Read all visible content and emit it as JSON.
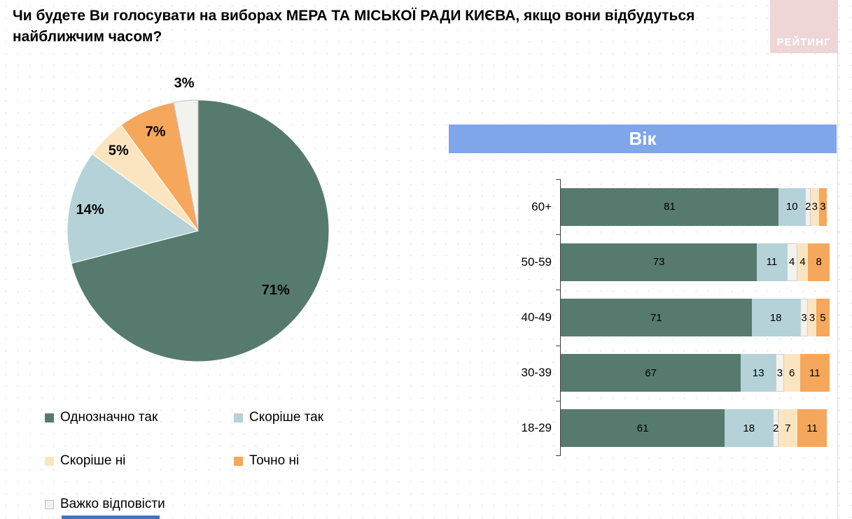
{
  "title": "Чи будете Ви голосувати на виборах МЕРА ТА МІСЬКОЇ РАДИ КИЄВА, якщо вони відбудуться найближчим часом?",
  "logo": {
    "text": "РЕЙТИНГ"
  },
  "colors": {
    "band_blue": "#7EA6E9",
    "logo_pink": "#EFD6D6",
    "accent_strip_blue": "#4472C4",
    "answer_definitely_yes": "#567B6E",
    "answer_rather_yes": "#B4D2D8",
    "answer_rather_no": "#FBE5C0",
    "answer_definitely_no": "#F5A75C",
    "answer_hard_to_say": "#F2F2EF"
  },
  "legend": [
    {
      "label": "Однозначно так",
      "color": "#567B6E"
    },
    {
      "label": "Скоріше так",
      "color": "#B4D2D8"
    },
    {
      "label": "Скоріше ні",
      "color": "#FBE5C0"
    },
    {
      "label": "Точно ні",
      "color": "#F5A75C"
    },
    {
      "label": "Важко відповісти",
      "color": "#F2F2EF"
    }
  ],
  "chart_data": [
    {
      "type": "pie",
      "labels": [
        "Однозначно так",
        "Скоріше так",
        "Скоріше ні",
        "Точно ні",
        "Важко відповісти"
      ],
      "values": [
        71,
        14,
        5,
        7,
        3
      ],
      "percent_labels": [
        "71%",
        "14%",
        "5%",
        "7%",
        "3%"
      ],
      "colors": [
        "#567B6E",
        "#B4D2D8",
        "#FBE5C0",
        "#F5A75C",
        "#F2F2EF"
      ],
      "start_angle_deg": -90,
      "direction": "clockwise"
    },
    {
      "type": "bar",
      "orientation": "horizontal-stacked",
      "title": "Вік",
      "categories": [
        "60+",
        "50-59",
        "40-49",
        "30-39",
        "18-29"
      ],
      "series": [
        {
          "name": "Однозначно так",
          "color": "#567B6E",
          "values": [
            81,
            73,
            71,
            67,
            61
          ]
        },
        {
          "name": "Скоріше так",
          "color": "#B4D2D8",
          "values": [
            10,
            11,
            18,
            13,
            18
          ]
        },
        {
          "name": "Важко відповісти",
          "color": "#F2F2EF",
          "values": [
            2,
            4,
            3,
            3,
            2
          ]
        },
        {
          "name": "Скоріше ні",
          "color": "#FBE5C0",
          "values": [
            3,
            4,
            3,
            6,
            7
          ]
        },
        {
          "name": "Точно ні",
          "color": "#F5A75C",
          "values": [
            3,
            8,
            5,
            11,
            11
          ]
        }
      ],
      "xlim": [
        0,
        100
      ],
      "value_labels_position": "inside"
    }
  ]
}
